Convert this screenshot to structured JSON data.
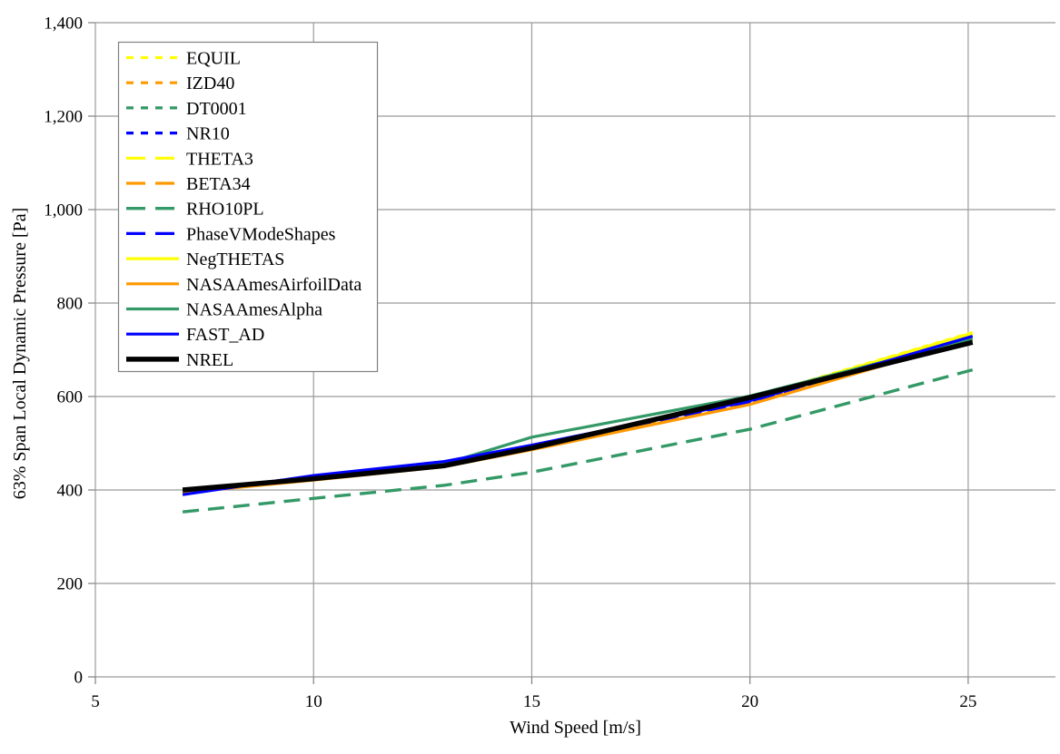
{
  "colors": {
    "gridline": "#9b9b9b",
    "axis": "#808080",
    "text": "#000000",
    "legend_border": "#808080",
    "background": "#ffffff"
  },
  "chart_data": {
    "type": "line",
    "xlabel": "Wind Speed [m/s]",
    "ylabel": "63% Span Local Dynamic Pressure [Pa]",
    "xlim": [
      5,
      27
    ],
    "ylim": [
      0,
      1400
    ],
    "x_ticks": [
      5,
      10,
      15,
      20,
      25
    ],
    "x_tick_labels": [
      "5",
      "10",
      "15",
      "20",
      "25"
    ],
    "y_ticks": [
      0,
      200,
      400,
      600,
      800,
      1000,
      1200,
      1400
    ],
    "y_tick_labels": [
      "0",
      "200",
      "400",
      "600",
      "800",
      "1,000",
      "1,200",
      "1,400"
    ],
    "grid": true,
    "legend_position": "upper-left-inside",
    "x": [
      7,
      10,
      13,
      15,
      20,
      25.1
    ],
    "series": [
      {
        "name": "EQUIL",
        "color": "#FFFF00",
        "style": "short-dash",
        "width": 3.2,
        "values": [
          397,
          424,
          453,
          491,
          597,
          737
        ]
      },
      {
        "name": "IZD40",
        "color": "#FF9900",
        "style": "short-dash",
        "width": 3.2,
        "values": [
          396,
          423,
          452,
          488,
          585,
          724
        ]
      },
      {
        "name": "DT0001",
        "color": "#339966",
        "style": "short-dash",
        "width": 3.2,
        "values": [
          398,
          424,
          453,
          490,
          596,
          721
        ]
      },
      {
        "name": "NR10",
        "color": "#0000FF",
        "style": "short-dash",
        "width": 3.2,
        "values": [
          393,
          430,
          460,
          495,
          590,
          729
        ]
      },
      {
        "name": "THETA3",
        "color": "#FFFF00",
        "style": "long-dash",
        "width": 3.2,
        "values": [
          397,
          425,
          454,
          491,
          596,
          736
        ]
      },
      {
        "name": "BETA34",
        "color": "#FF9900",
        "style": "long-dash",
        "width": 3.2,
        "values": [
          395,
          422,
          451,
          487,
          584,
          723
        ]
      },
      {
        "name": "RHO10PL",
        "color": "#339966",
        "style": "long-dash",
        "width": 3.4,
        "values": [
          353,
          382,
          410,
          438,
          530,
          657
        ]
      },
      {
        "name": "PhaseVModeShapes",
        "color": "#0000FF",
        "style": "long-dash",
        "width": 3.2,
        "values": [
          392,
          429,
          459,
          494,
          589,
          728
        ]
      },
      {
        "name": "NegTHETAS",
        "color": "#FFFF00",
        "style": "solid",
        "width": 3.2,
        "values": [
          398,
          425,
          453,
          490,
          596,
          735
        ]
      },
      {
        "name": "NASAAmesAirfoilData",
        "color": "#FF9900",
        "style": "solid",
        "width": 3.2,
        "values": [
          394,
          421,
          450,
          486,
          583,
          722
        ]
      },
      {
        "name": "NASAAmesAlpha",
        "color": "#339966",
        "style": "solid",
        "width": 3.2,
        "values": [
          399,
          425,
          456,
          513,
          601,
          723
        ]
      },
      {
        "name": "FAST_AD",
        "color": "#0000FF",
        "style": "solid",
        "width": 3.2,
        "values": [
          390,
          431,
          461,
          496,
          591,
          729
        ]
      },
      {
        "name": "NREL",
        "color": "#000000",
        "style": "solid",
        "width": 5.5,
        "values": [
          400,
          424,
          452,
          490,
          598,
          716
        ]
      }
    ]
  }
}
